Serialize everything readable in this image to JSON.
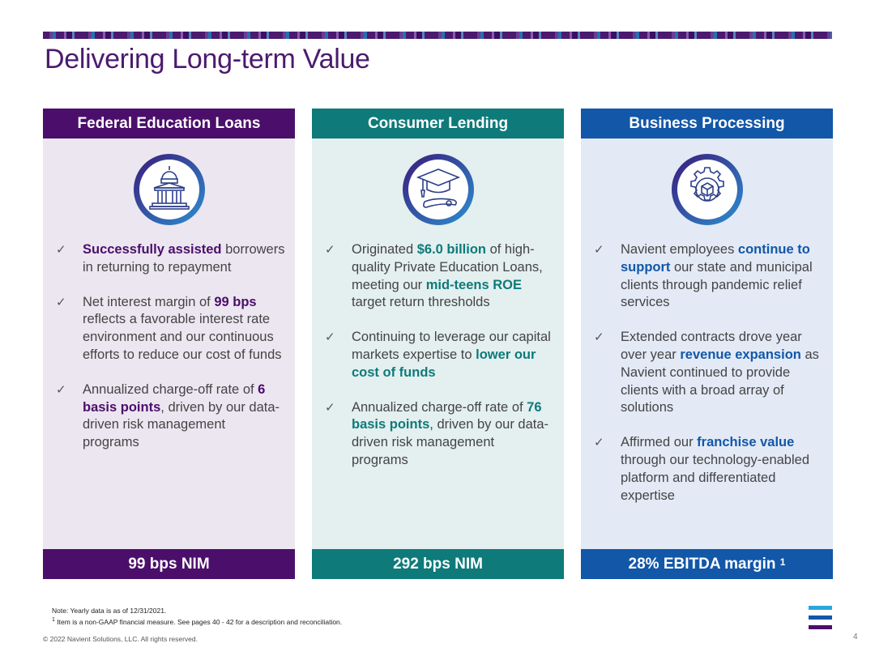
{
  "title": "Delivering Long-term Value",
  "colors": {
    "purple": "#4b0f6b",
    "teal": "#0e7a7a",
    "blue": "#1257a8"
  },
  "columns": [
    {
      "header": "Federal Education Loans",
      "icon": "capitol-building-icon",
      "bullets": [
        {
          "pre": "",
          "hl": "Successfully assisted",
          "post": " borrowers in returning to repayment"
        },
        {
          "pre": "Net interest margin of ",
          "hl": "99 bps",
          "post": " reflects a favorable interest rate environment and our continuous efforts to reduce our cost of funds"
        },
        {
          "pre": "Annualized charge-off rate of ",
          "hl": "6 basis points",
          "post": ", driven by our data-driven risk management programs"
        }
      ],
      "footer": "99 bps NIM"
    },
    {
      "header": "Consumer Lending",
      "icon": "graduation-cap-diploma-icon",
      "bullets": [
        {
          "pre": "Originated ",
          "hl": "$6.0 billion",
          "post": " of high-quality Private Education Loans, meeting our ",
          "hl2": "mid-teens ROE",
          "post2": " target return thresholds"
        },
        {
          "pre": "Continuing to leverage our capital markets expertise to ",
          "hl": "lower our cost of funds",
          "post": ""
        },
        {
          "pre": "Annualized charge-off rate of ",
          "hl": "76 basis points",
          "post": ", driven by our data-driven risk management programs"
        }
      ],
      "footer": "292 bps NIM"
    },
    {
      "header": "Business Processing",
      "icon": "gear-cube-icon",
      "bullets": [
        {
          "pre": "Navient employees ",
          "hl": "continue to support",
          "post": " our state and municipal clients through pandemic relief services"
        },
        {
          "pre": "Extended contracts drove year over year ",
          "hl": "revenue expansion",
          "post": " as Navient continued to provide clients with a broad array of solutions"
        },
        {
          "pre": "Affirmed our ",
          "hl": "franchise value",
          "post": " through our technology-enabled platform and differentiated expertise"
        }
      ],
      "footer": "28% EBITDA margin",
      "footer_sup": "1"
    }
  ],
  "check_glyph": "✓",
  "notes": {
    "line1": "Note: Yearly data is as of 12/31/2021.",
    "line2_sup": "1",
    "line2": " Item is a non-GAAP financial measure.  See pages 40 - 42 for a description and reconciliation."
  },
  "copyright": "© 2022 Navient Solutions, LLC. All rights reserved.",
  "page_number": "4"
}
